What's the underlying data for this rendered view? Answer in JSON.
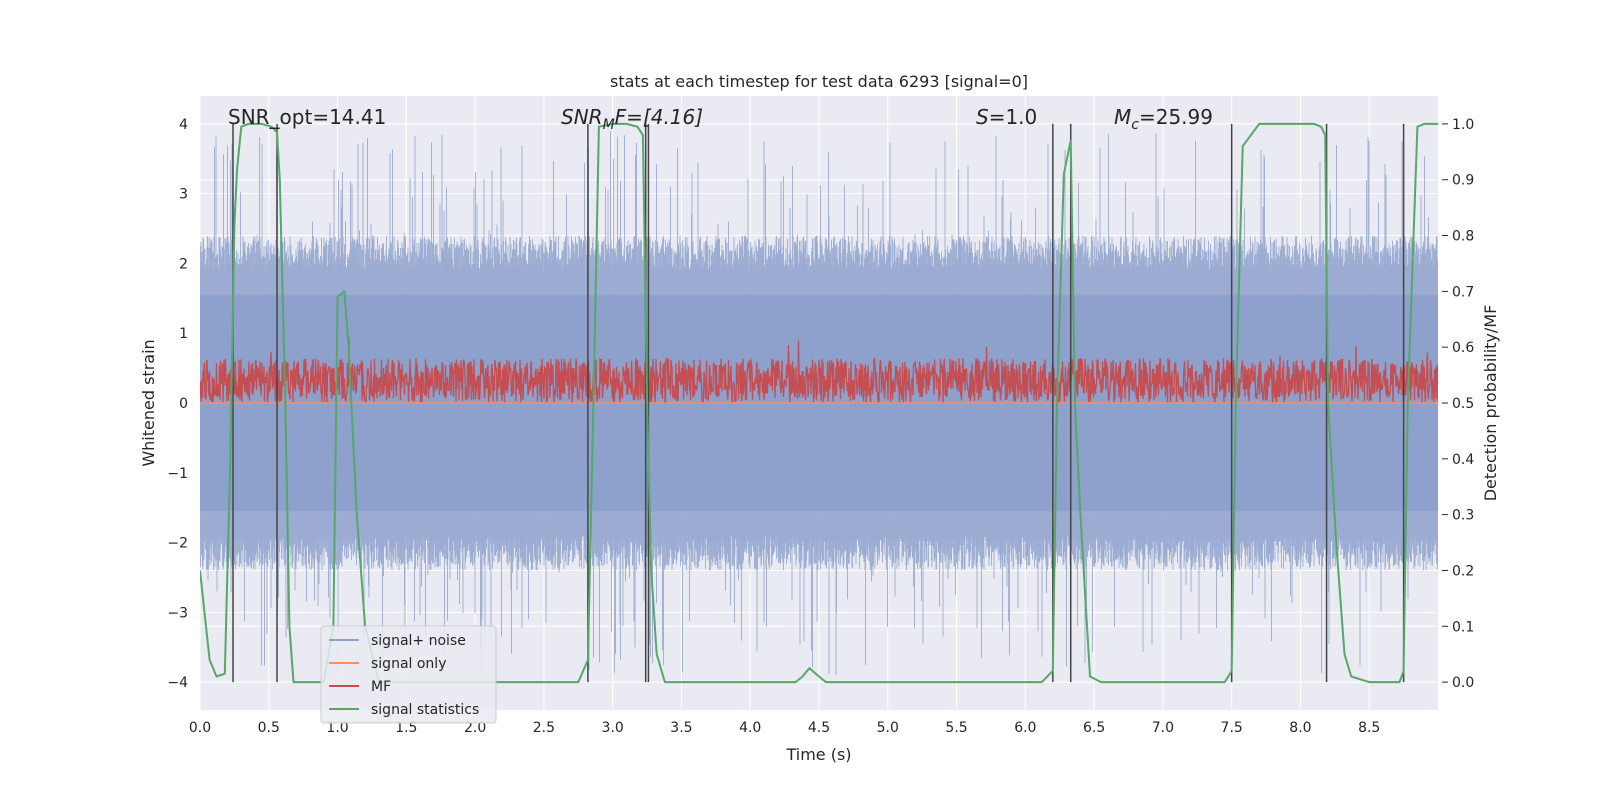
{
  "chart_data": {
    "type": "line",
    "title": "stats at each timestep for test data 6293 [signal=0]",
    "xlabel": "Time (s)",
    "ylabel": "Whitened strain",
    "ylabel_right": "Detection probability/MF",
    "xlim": [
      0,
      9.0
    ],
    "ylim": [
      -4.4,
      4.4
    ],
    "ylim_right": [
      -0.05,
      1.05
    ],
    "xticks": [
      "0.0",
      "0.5",
      "1.0",
      "1.5",
      "2.0",
      "2.5",
      "3.0",
      "3.5",
      "4.0",
      "4.5",
      "5.0",
      "5.5",
      "6.0",
      "6.5",
      "7.0",
      "7.5",
      "8.0",
      "8.5"
    ],
    "yticks": [
      "4",
      "3",
      "2",
      "1",
      "0",
      "−1",
      "−2",
      "−3",
      "−4"
    ],
    "yticks_right": [
      "1.0",
      "0.9",
      "0.8",
      "0.7",
      "0.6",
      "0.5",
      "0.4",
      "0.3",
      "0.2",
      "0.1",
      "0.0"
    ],
    "grid": true,
    "legend_position": "lower-left",
    "annotations": {
      "snr_opt": "SNR_opt=14.41",
      "snr_mf_base": "SNR",
      "snr_mf_sub": "M",
      "snr_mf_rest": "F=[4.16]",
      "s_var": "S",
      "s_rest": "=1.0",
      "mc_var": "M",
      "mc_sub": "c",
      "mc_rest": "=25.99"
    },
    "series": [
      {
        "name": "signal+ noise",
        "color": "#8da0cb",
        "envelope_typical": 2.0,
        "envelope_max": 3.9
      },
      {
        "name": "signal only",
        "color": "#fc8d62",
        "values_constant": 0.0
      },
      {
        "name": "MF",
        "color": "#c44e52",
        "axis": "right",
        "baseline": 0.5,
        "typical_max": 0.58,
        "peak_max": 0.62
      },
      {
        "name": "signal statistics",
        "color": "#55a868",
        "axis": "right",
        "x": [
          0.0,
          0.07,
          0.12,
          0.18,
          0.22,
          0.25,
          0.27,
          0.3,
          0.35,
          0.45,
          0.52,
          0.56,
          0.58,
          0.62,
          0.65,
          0.68,
          0.75,
          0.8,
          0.9,
          0.97,
          1.0,
          1.05,
          1.08,
          1.1,
          1.14,
          1.2,
          1.3,
          1.6,
          2.0,
          2.4,
          2.75,
          2.82,
          2.86,
          2.9,
          3.0,
          3.1,
          3.18,
          3.22,
          3.25,
          3.28,
          3.32,
          3.38,
          3.6,
          4.0,
          4.2,
          4.33,
          4.38,
          4.43,
          4.5,
          4.55,
          4.6,
          5.0,
          5.5,
          5.9,
          6.12,
          6.2,
          6.23,
          6.28,
          6.33,
          6.36,
          6.4,
          6.47,
          6.55,
          7.0,
          7.3,
          7.45,
          7.5,
          7.53,
          7.58,
          7.7,
          8.0,
          8.1,
          8.15,
          8.18,
          8.2,
          8.26,
          8.32,
          8.37,
          8.5,
          8.65,
          8.72,
          8.75,
          8.78,
          8.85,
          8.9,
          9.0
        ],
        "values": [
          0.2,
          0.04,
          0.01,
          0.015,
          0.4,
          0.82,
          0.92,
          0.995,
          1.0,
          1.0,
          0.995,
          0.985,
          0.9,
          0.5,
          0.1,
          0.0,
          0.0,
          0.0,
          0.0,
          0.1,
          0.69,
          0.7,
          0.6,
          0.5,
          0.3,
          0.1,
          0.0,
          0.0,
          0.0,
          0.0,
          0.0,
          0.04,
          0.5,
          0.995,
          1.0,
          1.0,
          0.995,
          0.98,
          0.5,
          0.2,
          0.05,
          0.0,
          0.0,
          0.0,
          0.0,
          0.0,
          0.01,
          0.025,
          0.01,
          0.0,
          0.0,
          0.0,
          0.0,
          0.0,
          0.0,
          0.02,
          0.5,
          0.91,
          0.97,
          0.5,
          0.3,
          0.01,
          0.0,
          0.0,
          0.0,
          0.0,
          0.02,
          0.5,
          0.96,
          1.0,
          1.0,
          1.0,
          0.995,
          0.98,
          0.5,
          0.25,
          0.05,
          0.01,
          0.0,
          0.0,
          0.0,
          0.02,
          0.5,
          0.995,
          1.0,
          1.0
        ]
      }
    ],
    "vlines_x": [
      0.24,
      0.56,
      2.82,
      3.24,
      3.26,
      6.2,
      6.33,
      7.5,
      8.19,
      8.75
    ]
  }
}
